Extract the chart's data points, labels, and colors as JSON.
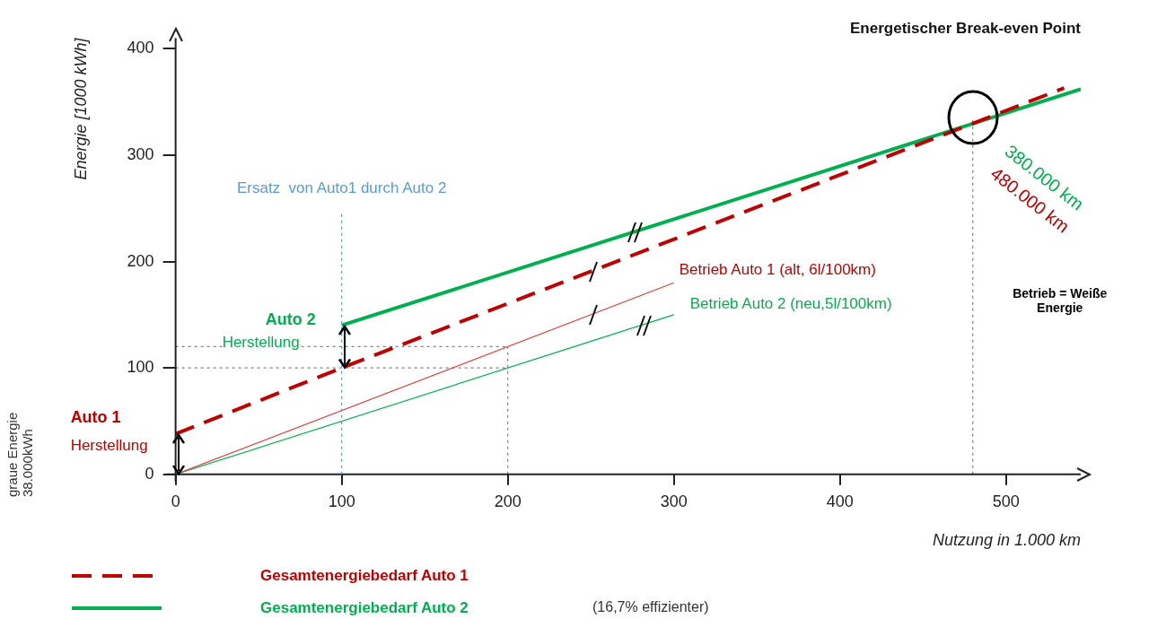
{
  "chart_data": {
    "type": "line",
    "title": "Energetischer Break-even Point",
    "xlabel": "Nutzung in 1.000 km",
    "ylabel": "Energie [1000 kWh]",
    "xlim": [
      0,
      545
    ],
    "xticks": [
      0,
      100,
      200,
      300,
      400,
      500
    ],
    "ylim": [
      0,
      410
    ],
    "yticks": [
      0,
      100,
      200,
      300,
      400
    ],
    "grid": false,
    "legend": "bottom left",
    "marker": "none",
    "series": [
      {
        "name": "Gesamtenergiebedarf Auto 1",
        "color": "#c00000",
        "line_style": "dashed",
        "x": [
          0,
          100,
          535
        ],
        "values": [
          38,
          100,
          363
        ]
      },
      {
        "name": "Gesamtenergiebedarf Auto 2",
        "color": "#00b050",
        "line_style": "solid",
        "x": [
          100,
          545
        ],
        "values": [
          140,
          362
        ]
      },
      {
        "color": "#e03c3c",
        "line_style": "solid",
        "x": [
          0,
          300
        ],
        "values": [
          0,
          180
        ]
      },
      {
        "color": "#00b050",
        "line_style": "solid",
        "x": [
          0,
          300
        ],
        "values": [
          0,
          150
        ]
      },
      {
        "color": "#808080",
        "line_style": "dotted",
        "x": [
          0,
          200
        ],
        "values": [
          100,
          100
        ]
      },
      {
        "color": "#808080",
        "line_style": "dotted",
        "x": [
          0,
          200
        ],
        "values": [
          120,
          120
        ]
      },
      {
        "color": "#808080",
        "line_style": "dotted",
        "x": [
          200,
          200
        ],
        "values": [
          0,
          120
        ]
      },
      {
        "color": "#808080",
        "line_style": "dotted",
        "x": [
          480,
          480
        ],
        "values": [
          0,
          335
        ]
      }
    ],
    "ref_lines": [
      {
        "axis": "x",
        "value": 100,
        "label": "Ersatz  von Auto1 durch Auto 2",
        "color": "#5b9bd5",
        "line_style": "dotted"
      }
    ],
    "annotations": [
      {
        "text": "Betrieb Auto 1 (alt, 6l/100km)",
        "x": 300,
        "y": 180
      },
      {
        "text": "Betrieb Auto 2 (neu,5l/100km)",
        "x": 300,
        "y": 150
      },
      "Auto 1",
      "Herstellung",
      "Auto 2",
      "Herstellung",
      "380.000 km",
      "480.000 km",
      "Betrieb = Weiße Energie",
      "graue Energie 38.000kWh",
      "(16,7% effizienter)"
    ]
  }
}
